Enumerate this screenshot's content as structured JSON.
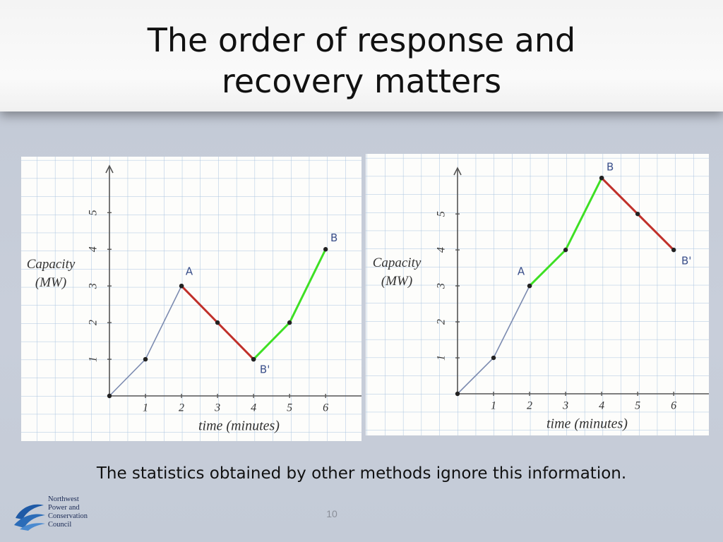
{
  "slide": {
    "title": "The order of response and recovery matters",
    "caption": "The statistics obtained by other methods ignore this information.",
    "page_number": "10",
    "logo": [
      "Northwest",
      "Power and",
      "Conservation",
      "Council"
    ]
  },
  "chart_data": [
    {
      "type": "line",
      "ylabel": "Capacity (MW)",
      "xlabel": "time (minutes)",
      "x": [
        0,
        1,
        2,
        3,
        4,
        5,
        6
      ],
      "series": [
        {
          "color": "#7c8bb0",
          "values": [
            0,
            1,
            3,
            null,
            null,
            null,
            null
          ]
        },
        {
          "color": "#c0302a",
          "values": [
            null,
            null,
            3,
            2,
            1,
            null,
            null
          ]
        },
        {
          "color": "#3ee024",
          "values": [
            null,
            null,
            null,
            null,
            1,
            2,
            4
          ]
        }
      ],
      "annotations": [
        {
          "text": "A",
          "x": 2,
          "y": 3
        },
        {
          "text": "B'",
          "x": 4,
          "y": 1
        },
        {
          "text": "B",
          "x": 6,
          "y": 4
        }
      ],
      "xlim": [
        0,
        6.8
      ],
      "ylim": [
        0,
        6.2
      ],
      "xticks": [
        1,
        2,
        3,
        4,
        5,
        6
      ],
      "yticks": [
        1,
        2,
        3,
        4,
        5
      ]
    },
    {
      "type": "line",
      "ylabel": "Capacity (MW)",
      "xlabel": "time (minutes)",
      "x": [
        0,
        1,
        2,
        3,
        4,
        5,
        6
      ],
      "series": [
        {
          "color": "#7c8bb0",
          "values": [
            0,
            1,
            3,
            null,
            null,
            null,
            null
          ]
        },
        {
          "color": "#3ee024",
          "values": [
            null,
            null,
            3,
            4,
            6,
            null,
            null
          ]
        },
        {
          "color": "#c0302a",
          "values": [
            null,
            null,
            null,
            null,
            6,
            5,
            4
          ]
        }
      ],
      "annotations": [
        {
          "text": "A",
          "x": 2,
          "y": 3
        },
        {
          "text": "B",
          "x": 4,
          "y": 6
        },
        {
          "text": "B'",
          "x": 6,
          "y": 4
        }
      ],
      "xlim": [
        0,
        6.8
      ],
      "ylim": [
        0,
        6.2
      ],
      "xticks": [
        1,
        2,
        3,
        4,
        5,
        6
      ],
      "yticks": [
        1,
        2,
        3,
        4,
        5
      ]
    }
  ]
}
